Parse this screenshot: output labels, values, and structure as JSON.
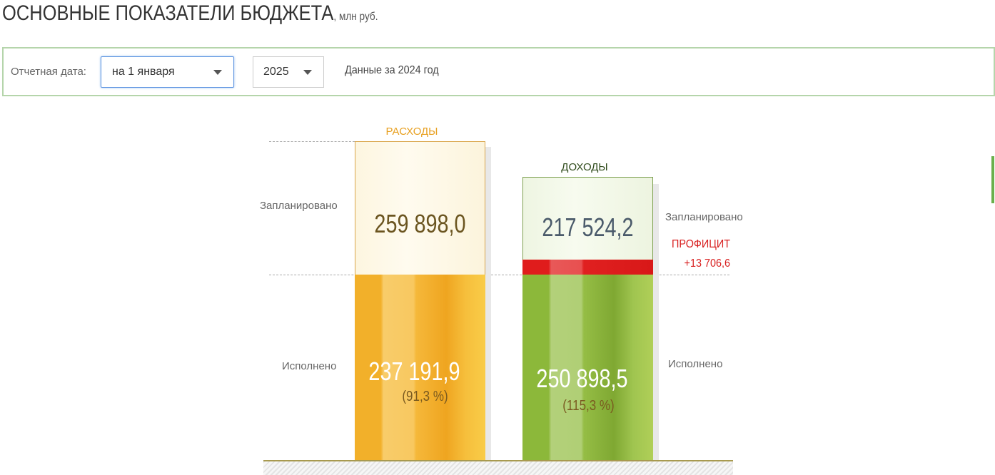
{
  "header": {
    "title": "ОСНОВНЫЕ ПОКАЗАТЕЛИ БЮДЖЕТА",
    "unit": ", млн руб."
  },
  "filter": {
    "label": "Отчетная дата:",
    "date": "на 1 января",
    "year": "2025",
    "note": "Данные за 2024 год"
  },
  "expenses": {
    "title": "РАСХОДЫ",
    "planned_label": "Запланировано",
    "planned": "259 898,0",
    "executed_label": "Исполнено",
    "executed": "237 191,9",
    "percent": "(91,3 %)"
  },
  "revenues": {
    "title": "ДОХОДЫ",
    "planned_label": "Запланировано",
    "planned": "217 524,2",
    "executed_label": "Исполнено",
    "executed": "250 898,5",
    "percent": "(115,3 %)"
  },
  "surplus": {
    "label": "ПРОФИЦИТ",
    "value": "+13 706,6"
  }
}
